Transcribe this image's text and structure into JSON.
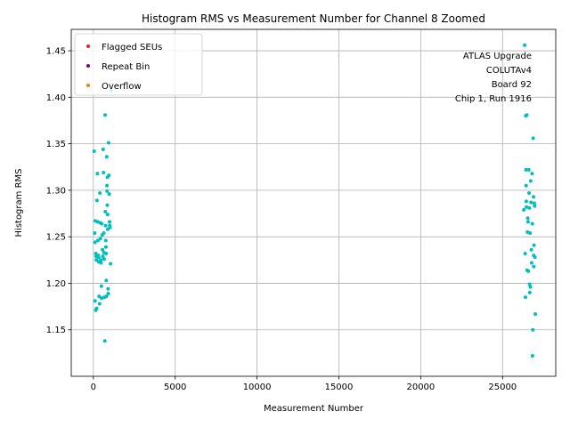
{
  "chart_data": {
    "type": "scatter",
    "title": "Histogram RMS vs Measurement Number for Channel 8 Zoomed",
    "xlabel": "Measurement Number",
    "ylabel": "Histogram RMS",
    "xlim": [
      -1350,
      28250
    ],
    "ylim": [
      1.1,
      1.473
    ],
    "xticks": [
      0,
      5000,
      10000,
      15000,
      20000,
      25000
    ],
    "xtick_labels": [
      "0",
      "5000",
      "10000",
      "15000",
      "20000",
      "25000"
    ],
    "yticks": [
      1.15,
      1.2,
      1.25,
      1.3,
      1.35,
      1.4,
      1.45
    ],
    "ytick_labels": [
      "1.15",
      "1.20",
      "1.25",
      "1.30",
      "1.35",
      "1.40",
      "1.45"
    ],
    "grid": true,
    "legend": {
      "placement": "upper-left",
      "entries": [
        {
          "label": "Flagged SEUs",
          "color": "#d62728"
        },
        {
          "label": "Repeat Bin",
          "color": "#800080"
        },
        {
          "label": "Overflow",
          "color": "#ff7f0e"
        }
      ]
    },
    "annotation": {
      "lines": [
        "ATLAS Upgrade",
        "COLUTAv4",
        "Board 92",
        "Chip 1, Run 1916"
      ],
      "placement": "upper-right"
    },
    "series": [
      {
        "color": "#00bfbf",
        "points": [
          [
            50,
            1.342
          ],
          [
            80,
            1.254
          ],
          [
            100,
            1.244
          ],
          [
            120,
            1.267
          ],
          [
            150,
            1.232
          ],
          [
            170,
            1.229
          ],
          [
            180,
            1.225
          ],
          [
            100,
            1.181
          ],
          [
            150,
            1.171
          ],
          [
            200,
            1.173
          ],
          [
            220,
            1.289
          ],
          [
            250,
            1.318
          ],
          [
            270,
            1.266
          ],
          [
            280,
            1.246
          ],
          [
            300,
            1.23
          ],
          [
            320,
            1.228
          ],
          [
            330,
            1.223
          ],
          [
            350,
            1.186
          ],
          [
            380,
            1.178
          ],
          [
            400,
            1.297
          ],
          [
            420,
            1.265
          ],
          [
            430,
            1.248
          ],
          [
            450,
            1.225
          ],
          [
            470,
            1.222
          ],
          [
            490,
            1.197
          ],
          [
            500,
            1.184
          ],
          [
            520,
            1.264
          ],
          [
            540,
            1.252
          ],
          [
            560,
            1.236
          ],
          [
            580,
            1.229
          ],
          [
            600,
            1.344
          ],
          [
            620,
            1.319
          ],
          [
            640,
            1.254
          ],
          [
            650,
            1.233
          ],
          [
            660,
            1.226
          ],
          [
            680,
            1.185
          ],
          [
            700,
            1.138
          ],
          [
            720,
            1.381
          ],
          [
            730,
            1.277
          ],
          [
            750,
            1.262
          ],
          [
            760,
            1.246
          ],
          [
            770,
            1.239
          ],
          [
            780,
            1.232
          ],
          [
            790,
            1.203
          ],
          [
            800,
            1.186
          ],
          [
            820,
            1.336
          ],
          [
            830,
            1.305
          ],
          [
            840,
            1.299
          ],
          [
            850,
            1.284
          ],
          [
            860,
            1.314
          ],
          [
            870,
            1.274
          ],
          [
            880,
            1.258
          ],
          [
            900,
            1.194
          ],
          [
            910,
            1.189
          ],
          [
            930,
            1.351
          ],
          [
            950,
            1.316
          ],
          [
            970,
            1.296
          ],
          [
            990,
            1.266
          ],
          [
            1000,
            1.262
          ],
          [
            1020,
            1.26
          ],
          [
            1050,
            1.221
          ],
          [
            1080,
            1.407
          ],
          [
            26300,
            1.279
          ],
          [
            26350,
            1.456
          ],
          [
            26380,
            1.232
          ],
          [
            26400,
            1.185
          ],
          [
            26420,
            1.38
          ],
          [
            26430,
            1.322
          ],
          [
            26440,
            1.305
          ],
          [
            26450,
            1.288
          ],
          [
            26460,
            1.282
          ],
          [
            26480,
            1.381
          ],
          [
            26500,
            1.214
          ],
          [
            26520,
            1.255
          ],
          [
            26540,
            1.27
          ],
          [
            26560,
            1.266
          ],
          [
            26580,
            1.213
          ],
          [
            26600,
            1.322
          ],
          [
            26620,
            1.297
          ],
          [
            26640,
            1.281
          ],
          [
            26650,
            1.199
          ],
          [
            26660,
            1.19
          ],
          [
            26680,
            1.254
          ],
          [
            26700,
            1.196
          ],
          [
            26720,
            1.31
          ],
          [
            26740,
            1.287
          ],
          [
            26760,
            1.236
          ],
          [
            26780,
            1.222
          ],
          [
            26800,
            1.318
          ],
          [
            26820,
            1.264
          ],
          [
            26830,
            1.122
          ],
          [
            26850,
            1.15
          ],
          [
            26870,
            1.356
          ],
          [
            26890,
            1.293
          ],
          [
            26900,
            1.23
          ],
          [
            26910,
            1.218
          ],
          [
            26920,
            1.241
          ],
          [
            26940,
            1.286
          ],
          [
            26960,
            1.283
          ],
          [
            26980,
            1.228
          ],
          [
            27000,
            1.167
          ]
        ]
      }
    ]
  }
}
